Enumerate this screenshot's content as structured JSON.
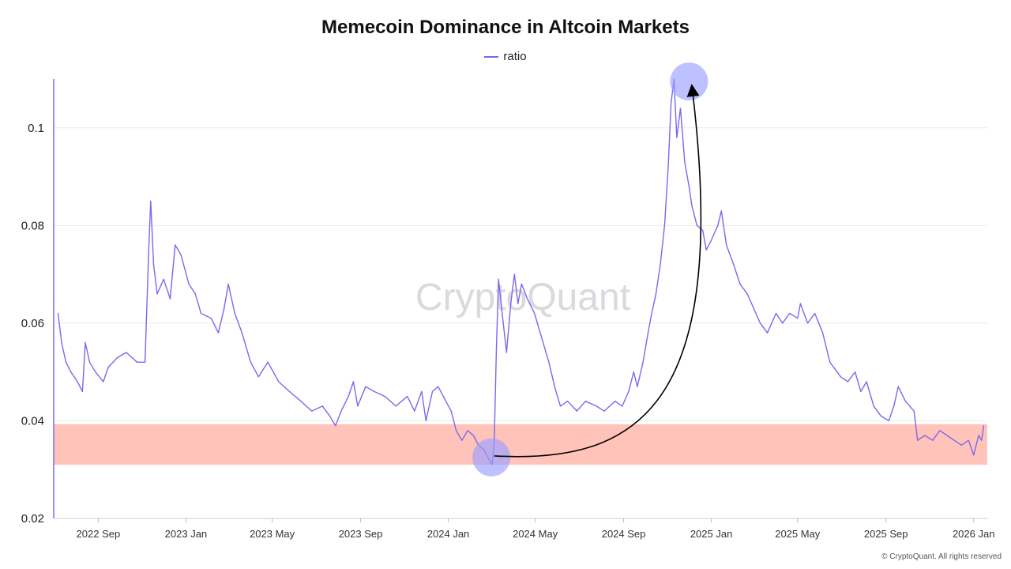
{
  "chart_data": {
    "type": "line",
    "title": "Memecoin Dominance in Altcoin Markets",
    "legend": "ratio",
    "legend_placement": "top-center",
    "line_color": "#7b68ee",
    "band_color": "#ffc0b5",
    "circle_color": "#9aa0ff",
    "xlabel": "",
    "ylabel": "",
    "ylim": [
      0.02,
      0.11
    ],
    "yticks": [
      0.02,
      0.04,
      0.06,
      0.08,
      0.1
    ],
    "ytick_labels": [
      "0.02",
      "0.04",
      "0.06",
      "0.08",
      "0.1"
    ],
    "xlim": [
      "2022-07-01",
      "2026-01-20"
    ],
    "xticks": [
      "2022-09-01",
      "2023-01-01",
      "2023-05-01",
      "2023-09-01",
      "2024-01-01",
      "2024-05-01",
      "2024-09-01",
      "2025-01-01",
      "2025-05-01",
      "2025-09-01",
      "2026-01-01"
    ],
    "xtick_labels": [
      "2022 Sep",
      "2023 Jan",
      "2023 May",
      "2023 Sep",
      "2024 Jan",
      "2024 May",
      "2024 Sep",
      "2025 Jan",
      "2025 May",
      "2025 Sep",
      "2026 Jan"
    ],
    "grid": "horizontal",
    "highlight_band": [
      0.031,
      0.0393
    ],
    "highlight_circles": [
      {
        "x": "2024-03-01",
        "y": 0.0325
      },
      {
        "x": "2024-12-01",
        "y": 0.1095
      }
    ],
    "arrow": {
      "from": {
        "x": "2024-03-05",
        "y": 0.0328
      },
      "to": {
        "x": "2024-12-05",
        "y": 0.1085
      }
    },
    "series": [
      {
        "name": "ratio",
        "points": [
          [
            "2022-07-07",
            0.062
          ],
          [
            "2022-07-12",
            0.056
          ],
          [
            "2022-07-18",
            0.052
          ],
          [
            "2022-07-25",
            0.05
          ],
          [
            "2022-08-03",
            0.048
          ],
          [
            "2022-08-10",
            0.046
          ],
          [
            "2022-08-14",
            0.056
          ],
          [
            "2022-08-20",
            0.052
          ],
          [
            "2022-08-28",
            0.05
          ],
          [
            "2022-09-08",
            0.048
          ],
          [
            "2022-09-15",
            0.051
          ],
          [
            "2022-09-28",
            0.053
          ],
          [
            "2022-10-10",
            0.054
          ],
          [
            "2022-10-25",
            0.052
          ],
          [
            "2022-11-05",
            0.052
          ],
          [
            "2022-11-10",
            0.074
          ],
          [
            "2022-11-13",
            0.085
          ],
          [
            "2022-11-17",
            0.072
          ],
          [
            "2022-11-22",
            0.066
          ],
          [
            "2022-12-01",
            0.069
          ],
          [
            "2022-12-10",
            0.065
          ],
          [
            "2022-12-17",
            0.076
          ],
          [
            "2022-12-25",
            0.074
          ],
          [
            "2023-01-05",
            0.068
          ],
          [
            "2023-01-14",
            0.066
          ],
          [
            "2023-01-22",
            0.062
          ],
          [
            "2023-02-05",
            0.061
          ],
          [
            "2023-02-15",
            0.058
          ],
          [
            "2023-02-23",
            0.063
          ],
          [
            "2023-03-01",
            0.068
          ],
          [
            "2023-03-10",
            0.062
          ],
          [
            "2023-03-20",
            0.058
          ],
          [
            "2023-04-01",
            0.052
          ],
          [
            "2023-04-12",
            0.049
          ],
          [
            "2023-04-25",
            0.052
          ],
          [
            "2023-05-10",
            0.048
          ],
          [
            "2023-05-25",
            0.046
          ],
          [
            "2023-06-10",
            0.044
          ],
          [
            "2023-06-25",
            0.042
          ],
          [
            "2023-07-10",
            0.043
          ],
          [
            "2023-07-20",
            0.041
          ],
          [
            "2023-07-28",
            0.039
          ],
          [
            "2023-08-05",
            0.042
          ],
          [
            "2023-08-15",
            0.045
          ],
          [
            "2023-08-22",
            0.048
          ],
          [
            "2023-08-28",
            0.043
          ],
          [
            "2023-09-08",
            0.047
          ],
          [
            "2023-09-20",
            0.046
          ],
          [
            "2023-10-05",
            0.045
          ],
          [
            "2023-10-20",
            0.043
          ],
          [
            "2023-11-05",
            0.045
          ],
          [
            "2023-11-15",
            0.042
          ],
          [
            "2023-11-25",
            0.046
          ],
          [
            "2023-12-01",
            0.04
          ],
          [
            "2023-12-10",
            0.046
          ],
          [
            "2023-12-18",
            0.047
          ],
          [
            "2023-12-25",
            0.045
          ],
          [
            "2024-01-05",
            0.042
          ],
          [
            "2024-01-12",
            0.038
          ],
          [
            "2024-01-20",
            0.036
          ],
          [
            "2024-01-28",
            0.038
          ],
          [
            "2024-02-05",
            0.037
          ],
          [
            "2024-02-12",
            0.035
          ],
          [
            "2024-02-20",
            0.034
          ],
          [
            "2024-02-27",
            0.032
          ],
          [
            "2024-03-02",
            0.031
          ],
          [
            "2024-03-05",
            0.036
          ],
          [
            "2024-03-08",
            0.055
          ],
          [
            "2024-03-11",
            0.069
          ],
          [
            "2024-03-16",
            0.062
          ],
          [
            "2024-03-22",
            0.054
          ],
          [
            "2024-03-28",
            0.064
          ],
          [
            "2024-04-02",
            0.07
          ],
          [
            "2024-04-07",
            0.064
          ],
          [
            "2024-04-12",
            0.068
          ],
          [
            "2024-04-20",
            0.065
          ],
          [
            "2024-04-30",
            0.062
          ],
          [
            "2024-05-10",
            0.057
          ],
          [
            "2024-05-20",
            0.052
          ],
          [
            "2024-05-28",
            0.047
          ],
          [
            "2024-06-05",
            0.043
          ],
          [
            "2024-06-15",
            0.044
          ],
          [
            "2024-06-28",
            0.042
          ],
          [
            "2024-07-10",
            0.044
          ],
          [
            "2024-07-25",
            0.043
          ],
          [
            "2024-08-05",
            0.042
          ],
          [
            "2024-08-20",
            0.044
          ],
          [
            "2024-08-30",
            0.043
          ],
          [
            "2024-09-08",
            0.046
          ],
          [
            "2024-09-15",
            0.05
          ],
          [
            "2024-09-20",
            0.047
          ],
          [
            "2024-09-28",
            0.052
          ],
          [
            "2024-10-05",
            0.058
          ],
          [
            "2024-10-10",
            0.062
          ],
          [
            "2024-10-16",
            0.066
          ],
          [
            "2024-10-22",
            0.072
          ],
          [
            "2024-10-28",
            0.08
          ],
          [
            "2024-11-02",
            0.092
          ],
          [
            "2024-11-06",
            0.105
          ],
          [
            "2024-11-10",
            0.11
          ],
          [
            "2024-11-14",
            0.098
          ],
          [
            "2024-11-19",
            0.104
          ],
          [
            "2024-11-25",
            0.093
          ],
          [
            "2024-12-01",
            0.088
          ],
          [
            "2024-12-05",
            0.084
          ],
          [
            "2024-12-12",
            0.08
          ],
          [
            "2024-12-20",
            0.079
          ],
          [
            "2024-12-25",
            0.075
          ],
          [
            "2025-01-01",
            0.077
          ],
          [
            "2025-01-10",
            0.08
          ],
          [
            "2025-01-15",
            0.083
          ],
          [
            "2025-01-22",
            0.076
          ],
          [
            "2025-02-01",
            0.072
          ],
          [
            "2025-02-10",
            0.068
          ],
          [
            "2025-02-20",
            0.066
          ],
          [
            "2025-03-01",
            0.063
          ],
          [
            "2025-03-10",
            0.06
          ],
          [
            "2025-03-20",
            0.058
          ],
          [
            "2025-04-01",
            0.062
          ],
          [
            "2025-04-10",
            0.06
          ],
          [
            "2025-04-20",
            0.062
          ],
          [
            "2025-05-01",
            0.061
          ],
          [
            "2025-05-05",
            0.064
          ],
          [
            "2025-05-15",
            0.06
          ],
          [
            "2025-05-25",
            0.062
          ],
          [
            "2025-06-05",
            0.058
          ],
          [
            "2025-06-15",
            0.052
          ],
          [
            "2025-06-30",
            0.049
          ],
          [
            "2025-07-10",
            0.048
          ],
          [
            "2025-07-20",
            0.05
          ],
          [
            "2025-07-28",
            0.046
          ],
          [
            "2025-08-05",
            0.048
          ],
          [
            "2025-08-15",
            0.043
          ],
          [
            "2025-08-25",
            0.041
          ],
          [
            "2025-09-05",
            0.04
          ],
          [
            "2025-09-12",
            0.043
          ],
          [
            "2025-09-18",
            0.047
          ],
          [
            "2025-09-28",
            0.044
          ],
          [
            "2025-10-10",
            0.042
          ],
          [
            "2025-10-15",
            0.036
          ],
          [
            "2025-10-25",
            0.037
          ],
          [
            "2025-11-05",
            0.036
          ],
          [
            "2025-11-15",
            0.038
          ],
          [
            "2025-11-25",
            0.037
          ],
          [
            "2025-12-05",
            0.036
          ],
          [
            "2025-12-15",
            0.035
          ],
          [
            "2025-12-25",
            0.036
          ],
          [
            "2026-01-01",
            0.033
          ],
          [
            "2026-01-08",
            0.037
          ],
          [
            "2026-01-12",
            0.036
          ],
          [
            "2026-01-15",
            0.039
          ]
        ]
      }
    ]
  },
  "watermark": "CryptoQuant",
  "credit": "© CryptoQuant. All rights reserved"
}
